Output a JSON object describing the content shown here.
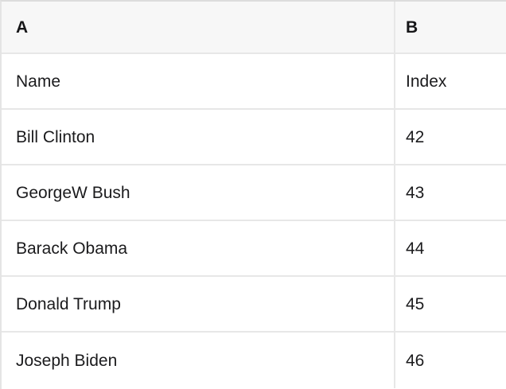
{
  "table": {
    "columns": [
      "A",
      "B"
    ],
    "rows": [
      [
        "Name",
        "Index"
      ],
      [
        "Bill Clinton",
        "42"
      ],
      [
        "GeorgeW Bush",
        "43"
      ],
      [
        "Barack Obama",
        "44"
      ],
      [
        "Donald Trump",
        "45"
      ],
      [
        "Joseph Biden",
        "46"
      ]
    ]
  },
  "colors": {
    "header_bg": "#f7f7f7",
    "row_bg": "#ffffff",
    "border": "#e7e7e7",
    "text": "#1b1b1d"
  }
}
